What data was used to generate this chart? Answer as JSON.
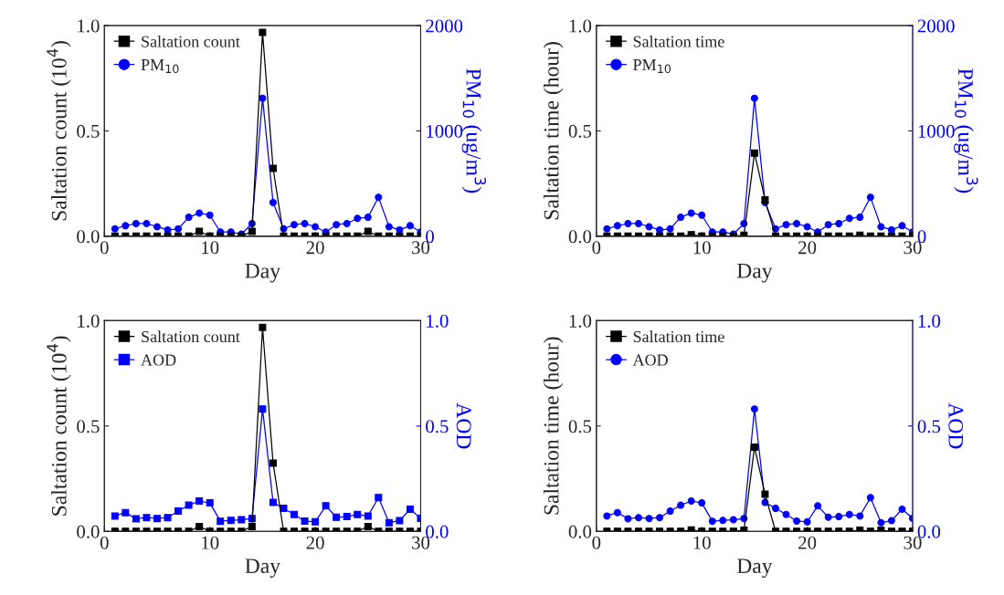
{
  "chart_data": [
    {
      "type": "line",
      "xlabel": "Day",
      "ylabel": "Saltation count (10$^{4}$)",
      "y2label": "PM$_{10}$ (ug/m$^{3}$)",
      "x": [
        1,
        2,
        3,
        4,
        5,
        6,
        7,
        8,
        9,
        10,
        11,
        12,
        13,
        14,
        15,
        16,
        17,
        18,
        19,
        20,
        21,
        22,
        23,
        24,
        25,
        26,
        27,
        28,
        29,
        30
      ],
      "series": [
        {
          "name": "Saltation count",
          "color": "#000000",
          "marker": "square",
          "values": [
            0,
            0,
            0,
            0,
            0,
            0,
            0,
            0,
            0.023,
            0,
            0,
            0,
            0,
            0.023,
            0.968,
            0.322,
            0,
            0,
            0,
            0,
            0,
            0,
            0,
            0,
            0.023,
            0,
            0,
            0,
            0,
            0
          ]
        },
        {
          "name": "PM$_{10}$",
          "color": "#0000ff",
          "marker": "circle",
          "axis": "y2",
          "values": [
            70,
            100,
            120,
            120,
            90,
            60,
            70,
            180,
            220,
            200,
            40,
            40,
            20,
            120,
            1310,
            320,
            70,
            110,
            120,
            90,
            40,
            110,
            120,
            170,
            180,
            370,
            90,
            60,
            100,
            40
          ]
        }
      ],
      "xlim": [
        0,
        30
      ],
      "xticks": [
        0,
        10,
        20,
        30
      ],
      "ylim": [
        0,
        1
      ],
      "yticks": [
        {
          "value": 0,
          "label": "0.0"
        },
        {
          "value": 0.5,
          "label": "0.5"
        },
        {
          "value": 1,
          "label": "1.0"
        }
      ],
      "y2lim": [
        0,
        2000
      ],
      "y2ticks": [
        0,
        1000,
        2000
      ],
      "legend": "top left",
      "grid": false
    },
    {
      "type": "line",
      "xlabel": "Day",
      "ylabel": "Saltation time (hour)",
      "y2label": "PM$_{10}$ (ug/m$^{3}$)",
      "x": [
        1,
        2,
        3,
        4,
        5,
        6,
        7,
        8,
        9,
        10,
        11,
        12,
        13,
        14,
        15,
        16,
        17,
        18,
        19,
        20,
        21,
        22,
        23,
        24,
        25,
        26,
        27,
        28,
        29,
        30
      ],
      "series": [
        {
          "name": "Saltation time",
          "color": "#000000",
          "marker": "square",
          "values": [
            0,
            0,
            0,
            0,
            0,
            0,
            0,
            0,
            0.007,
            0,
            0,
            0,
            0,
            0.005,
            0.395,
            0.173,
            0,
            0,
            0,
            0,
            0,
            0,
            0,
            0,
            0.005,
            0,
            0,
            0,
            0,
            0
          ]
        },
        {
          "name": "PM$_{10}$",
          "color": "#0000ff",
          "marker": "circle",
          "axis": "y2",
          "values": [
            70,
            100,
            120,
            120,
            90,
            60,
            70,
            180,
            220,
            200,
            40,
            40,
            20,
            120,
            1310,
            320,
            70,
            110,
            120,
            90,
            40,
            110,
            120,
            170,
            180,
            370,
            90,
            60,
            100,
            40
          ]
        }
      ],
      "xlim": [
        0,
        30
      ],
      "xticks": [
        0,
        10,
        20,
        30
      ],
      "ylim": [
        0,
        1
      ],
      "yticks": [
        {
          "value": 0,
          "label": "0.0"
        },
        {
          "value": 0.5,
          "label": "0.5"
        },
        {
          "value": 1,
          "label": "1.0"
        }
      ],
      "y2lim": [
        0,
        2000
      ],
      "y2ticks": [
        0,
        1000,
        2000
      ],
      "legend": "top left",
      "grid": false
    },
    {
      "type": "line",
      "xlabel": "Day",
      "ylabel": "Saltation count (10$^{4}$)",
      "y2label": "AOD",
      "x": [
        1,
        2,
        3,
        4,
        5,
        6,
        7,
        8,
        9,
        10,
        11,
        12,
        13,
        14,
        15,
        16,
        17,
        18,
        19,
        20,
        21,
        22,
        23,
        24,
        25,
        26,
        27,
        28,
        29,
        30
      ],
      "series": [
        {
          "name": "Saltation count",
          "color": "#000000",
          "marker": "square",
          "values": [
            0,
            0,
            0,
            0,
            0,
            0,
            0,
            0,
            0.023,
            0,
            0,
            0,
            0,
            0.023,
            0.968,
            0.324,
            0,
            0,
            0,
            0,
            0,
            0,
            0,
            0,
            0.023,
            0,
            0,
            0,
            0,
            0
          ]
        },
        {
          "name": "AOD",
          "color": "#0000ff",
          "marker": "square",
          "axis": "y2",
          "values": [
            0.073,
            0.089,
            0.06,
            0.065,
            0.061,
            0.065,
            0.096,
            0.124,
            0.144,
            0.135,
            0.048,
            0.052,
            0.055,
            0.061,
            0.581,
            0.137,
            0.109,
            0.08,
            0.049,
            0.045,
            0.121,
            0.067,
            0.07,
            0.08,
            0.073,
            0.16,
            0.041,
            0.051,
            0.105,
            0.062
          ]
        }
      ],
      "xlim": [
        0,
        30
      ],
      "xticks": [
        0,
        10,
        20,
        30
      ],
      "ylim": [
        0,
        1
      ],
      "yticks": [
        {
          "value": 0,
          "label": "0.0"
        },
        {
          "value": 0.5,
          "label": "0.5"
        },
        {
          "value": 1,
          "label": "1.0"
        }
      ],
      "y2lim": [
        0,
        1
      ],
      "y2ticks": [
        {
          "value": 0,
          "label": "0.0"
        },
        {
          "value": 0.5,
          "label": "0.5"
        },
        {
          "value": 1,
          "label": "1.0"
        }
      ],
      "legend": "top left",
      "grid": false
    },
    {
      "type": "line",
      "xlabel": "Day",
      "ylabel": "Saltation time (hour)",
      "y2label": "AOD",
      "x": [
        1,
        2,
        3,
        4,
        5,
        6,
        7,
        8,
        9,
        10,
        11,
        12,
        13,
        14,
        15,
        16,
        17,
        18,
        19,
        20,
        21,
        22,
        23,
        24,
        25,
        26,
        27,
        28,
        29,
        30
      ],
      "series": [
        {
          "name": "Saltation time",
          "color": "#000000",
          "marker": "square",
          "values": [
            0,
            0,
            0,
            0,
            0,
            0,
            0,
            0,
            0.006,
            0,
            0,
            0,
            0,
            0.005,
            0.4,
            0.176,
            0,
            0,
            0,
            0,
            0,
            0,
            0,
            0,
            0.005,
            0,
            0.005,
            0,
            0,
            0
          ]
        },
        {
          "name": "AOD",
          "color": "#0000ff",
          "marker": "circle",
          "axis": "y2",
          "values": [
            0.073,
            0.089,
            0.06,
            0.065,
            0.061,
            0.065,
            0.096,
            0.124,
            0.144,
            0.135,
            0.048,
            0.052,
            0.055,
            0.061,
            0.581,
            0.137,
            0.109,
            0.08,
            0.049,
            0.045,
            0.121,
            0.067,
            0.07,
            0.08,
            0.073,
            0.16,
            0.041,
            0.051,
            0.105,
            0.062
          ]
        }
      ],
      "xlim": [
        0,
        30
      ],
      "xticks": [
        0,
        10,
        20,
        30
      ],
      "ylim": [
        0,
        1
      ],
      "yticks": [
        {
          "value": 0,
          "label": "0.0"
        },
        {
          "value": 0.5,
          "label": "0.5"
        },
        {
          "value": 1,
          "label": "1.0"
        }
      ],
      "y2lim": [
        0,
        1
      ],
      "y2ticks": [
        {
          "value": 0,
          "label": "0.0"
        },
        {
          "value": 0.5,
          "label": "0.5"
        },
        {
          "value": 1,
          "label": "1.0"
        }
      ],
      "legend": "top left",
      "grid": false
    }
  ]
}
